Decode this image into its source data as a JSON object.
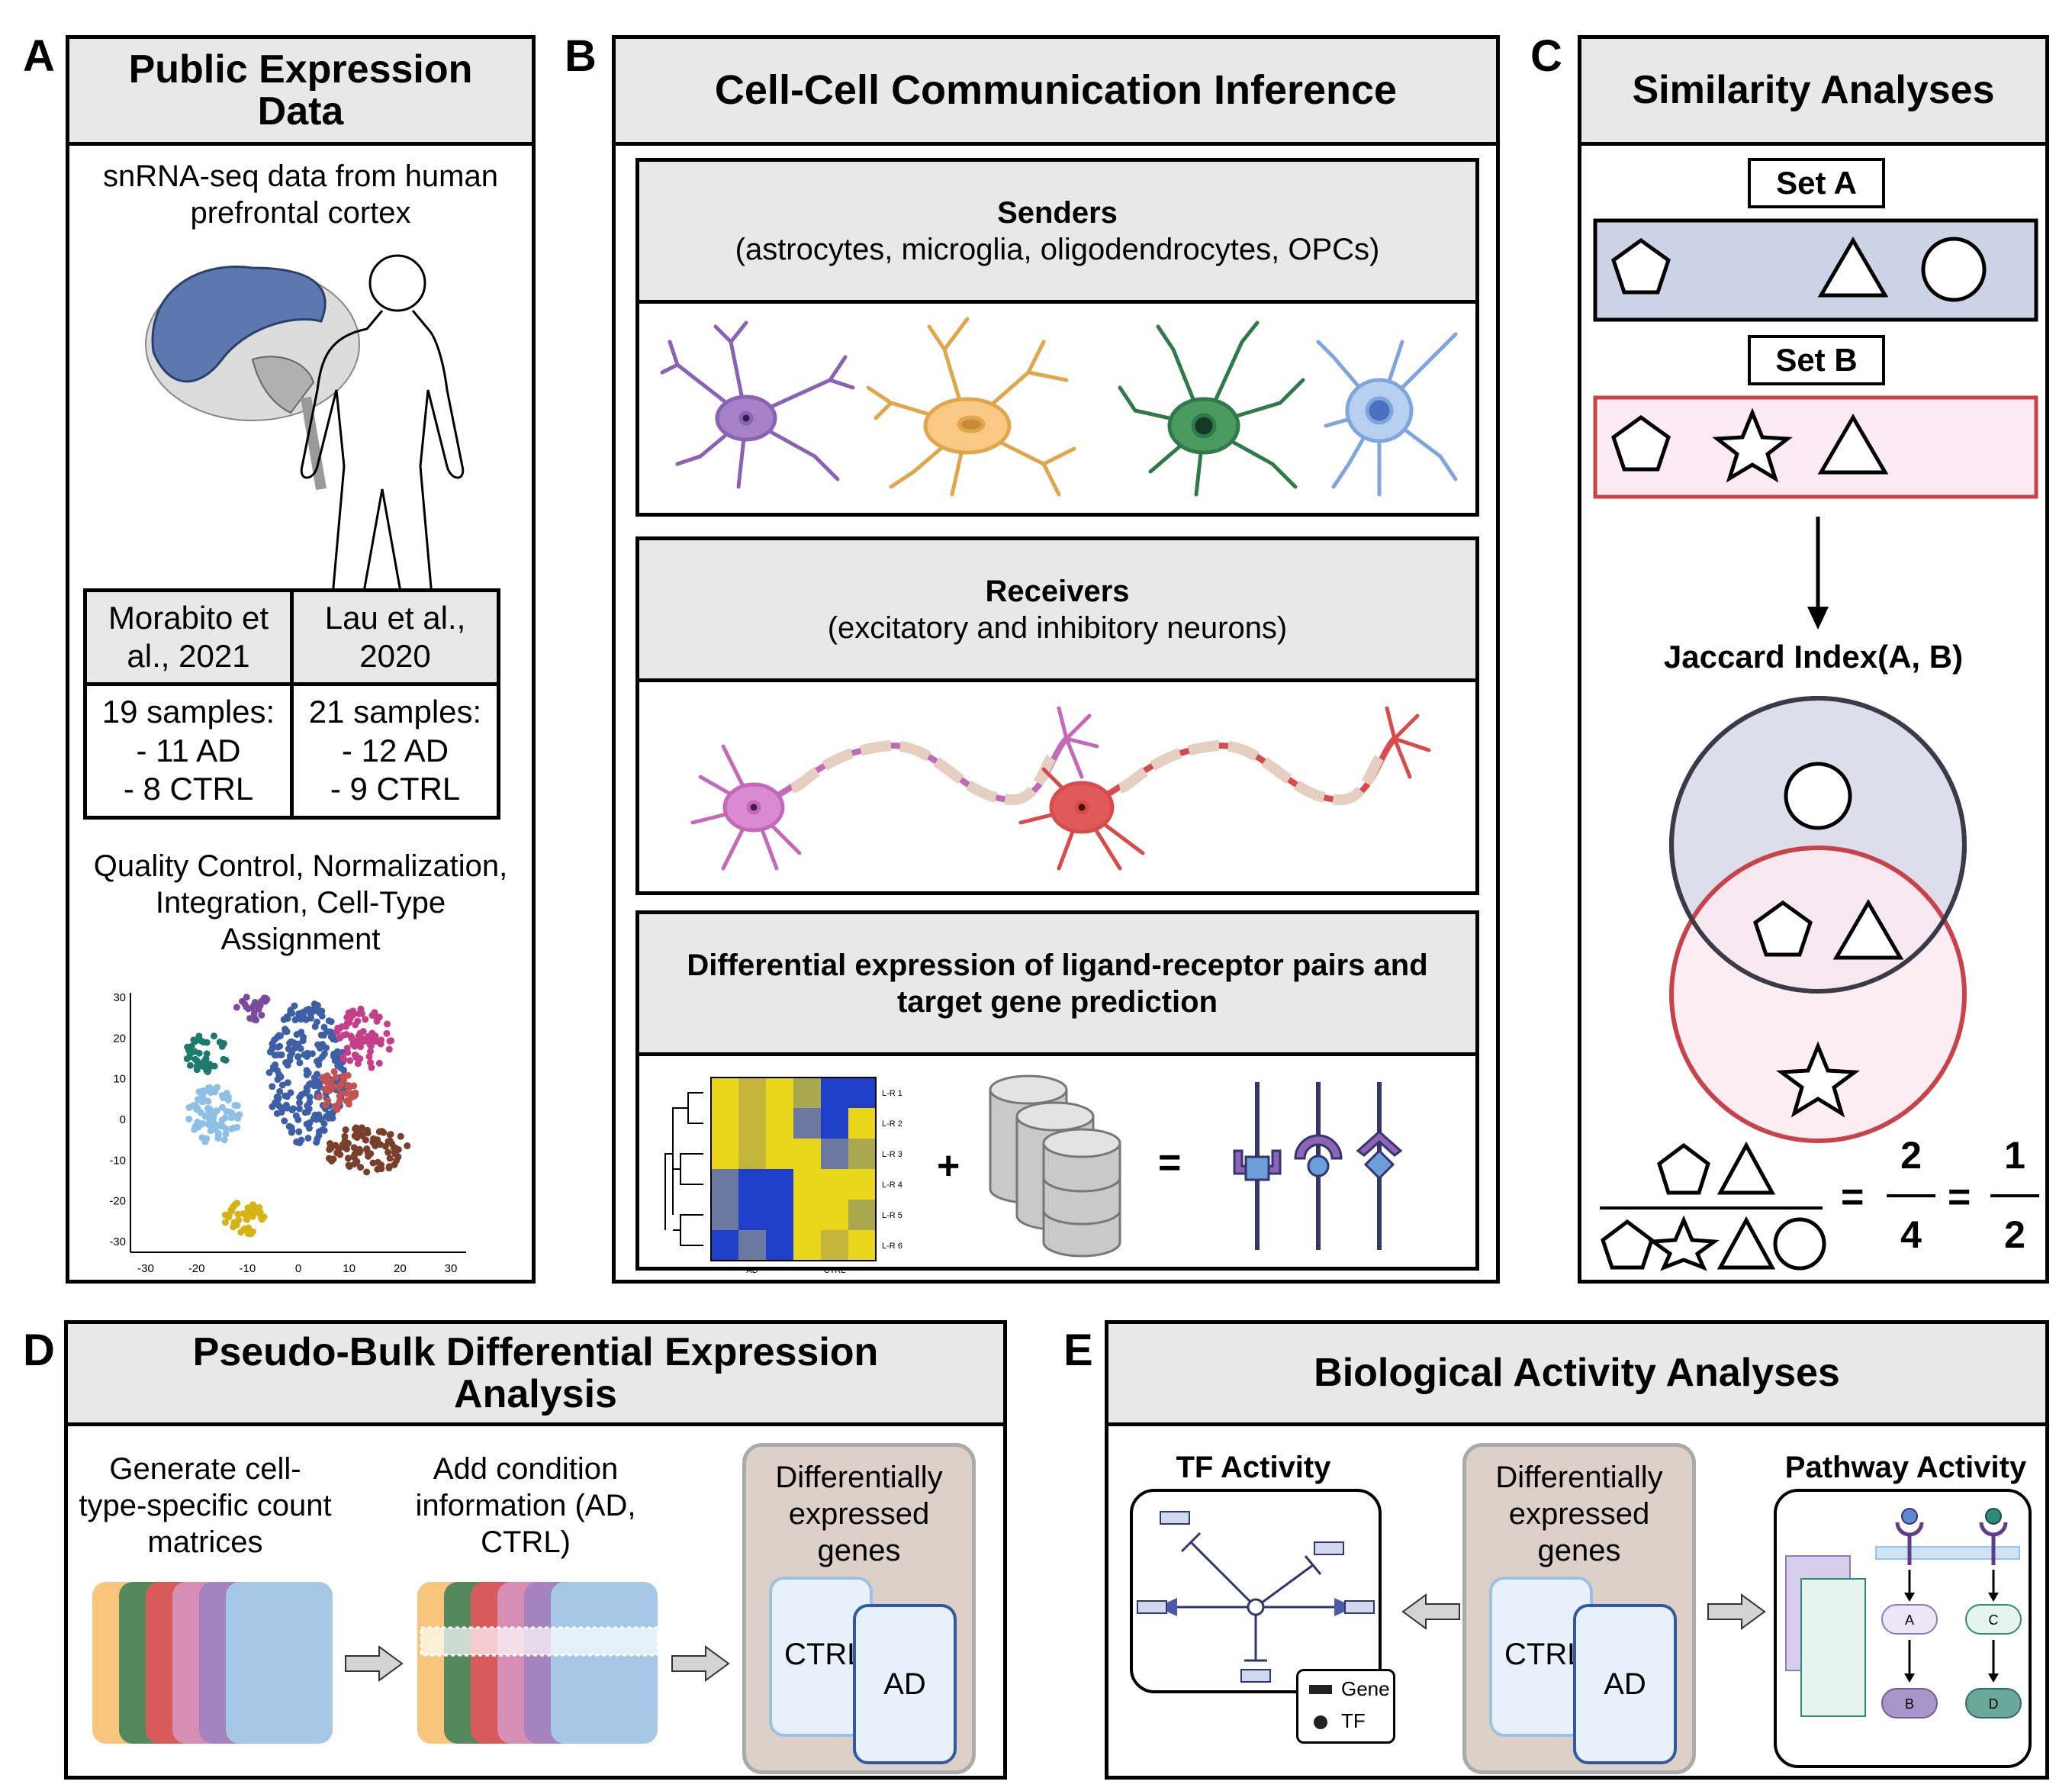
{
  "panels": {
    "a": {
      "letter": "A",
      "title": "Public Expression Data",
      "subtitle": "snRNA-seq data from human prefrontal cortex",
      "study1_header": "Morabito et al., 2021",
      "study2_header": "Lau et al., 2020",
      "study1_samples": "19 samples:",
      "study1_ad": "- 11 AD",
      "study1_ctrl": "- 8 CTRL",
      "study2_samples": "21 samples:",
      "study2_ad": "- 12 AD",
      "study2_ctrl": "- 9 CTRL",
      "processing": "Quality Control, Normalization, Integration, Cell-Type Assignment",
      "tsne_y_ticks": [
        "30",
        "20",
        "10",
        "0",
        "-10",
        "-20",
        "-30"
      ],
      "tsne_x_ticks": [
        "-30",
        "-20",
        "-10",
        "0",
        "10",
        "20",
        "30"
      ]
    },
    "b": {
      "letter": "B",
      "title": "Cell-Cell Communication Inference",
      "senders_title": "Senders",
      "senders_sub": "(astrocytes, microglia, oligodendrocytes, OPCs)",
      "receivers_title": "Receivers",
      "receivers_sub": "(excitatory and inhibitory neurons)",
      "de_title": "Differential expression of ligand-receptor pairs and target gene prediction",
      "heatmap_rows": [
        "L-R 1",
        "L-R 2",
        "L-R 3",
        "L-R 4",
        "L-R 5",
        "L-R 6"
      ],
      "heatmap_cols": [
        "AD",
        "CTRL"
      ],
      "plus": "+",
      "equals": "="
    },
    "c": {
      "letter": "C",
      "title": "Similarity Analyses",
      "set_a": "Set A",
      "set_b": "Set B",
      "jaccard": "Jaccard Index(A, B)",
      "eq1": "=",
      "eq2": "=",
      "num1": "2",
      "den1": "4",
      "num2": "1",
      "den2": "2"
    },
    "d": {
      "letter": "D",
      "title": "Pseudo-Bulk Differential Expression Analysis",
      "step1": "Generate cell-type-specific count matrices",
      "step2": "Add condition information (AD, CTRL)",
      "deg": "Differentially expressed genes",
      "ctrl": "CTRL",
      "ad": "AD"
    },
    "e": {
      "letter": "E",
      "title": "Biological Activity Analyses",
      "tf_title": "TF Activity",
      "deg": "Differentially expressed genes",
      "ctrl": "CTRL",
      "ad": "AD",
      "pathway_title": "Pathway Activity",
      "legend_gene": "Gene",
      "legend_tf": "TF",
      "node_a": "A",
      "node_b": "B",
      "node_c": "C",
      "node_d": "D"
    }
  },
  "colors": {
    "header_bg": "#e8e8e8",
    "set_a_fill": "#cdd3e6",
    "set_b_fill": "#fbeaf1",
    "set_b_border": "#c9424a",
    "deg_box": "#ddd0c8",
    "ctrl_fill": "#e8f0fa",
    "ad_fill": "#e8f0fa",
    "ad_border": "#2f5a9e"
  }
}
